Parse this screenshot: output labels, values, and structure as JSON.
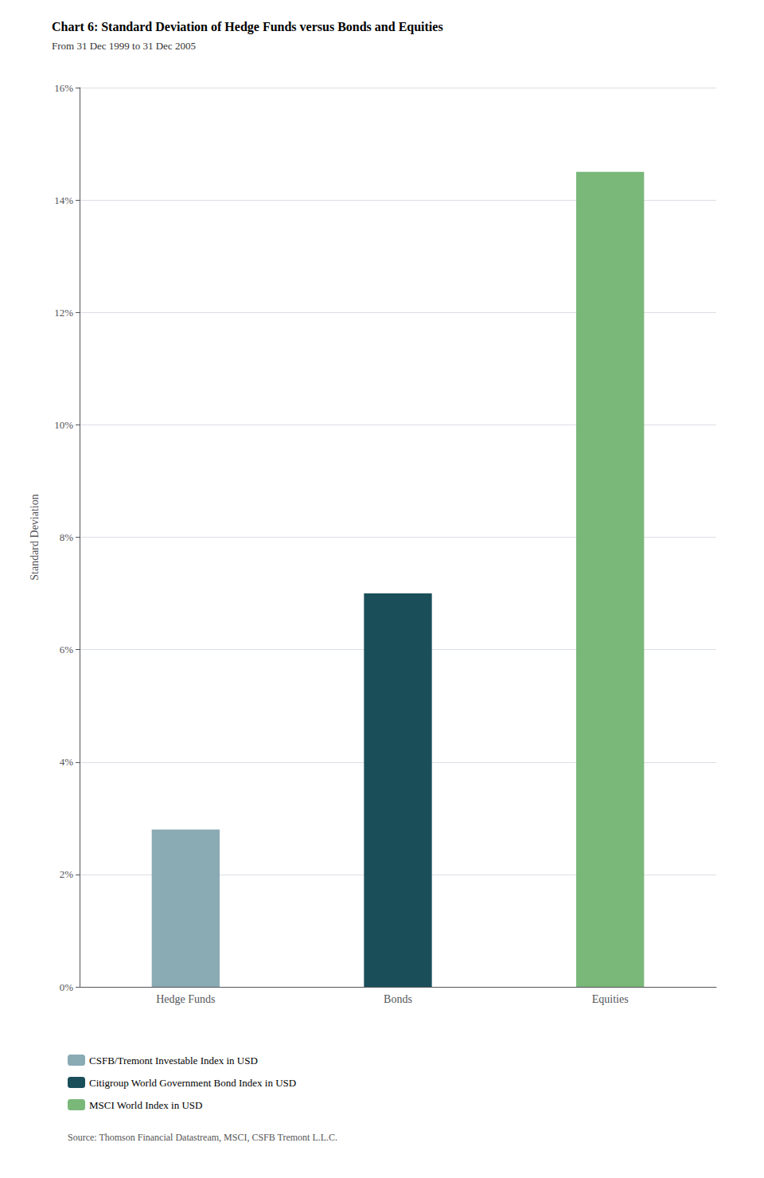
{
  "chart_data": {
    "type": "bar",
    "title": "Chart 6: Standard Deviation of Hedge Funds versus Bonds and Equities",
    "subtitle": "From 31 Dec 1999 to 31 Dec 2005",
    "ylabel": "Standard Deviation",
    "categories": [
      "Hedge Funds",
      "Bonds",
      "Equities"
    ],
    "series": [
      {
        "name": "CSFB/Tremont Investable Index in USD",
        "color": "#8aaab4",
        "values": [
          0.028,
          null,
          null
        ]
      },
      {
        "name": "Citigroup World Government Bond Index in USD",
        "color": "#1a4f5a",
        "values": [
          null,
          0.07,
          null
        ]
      },
      {
        "name": "MSCI World Index in USD",
        "color": "#7ab87a",
        "values": [
          null,
          null,
          0.145
        ]
      }
    ],
    "ylim": [
      0,
      0.16
    ],
    "yticks": [
      {
        "value": 0.0,
        "label": "0%"
      },
      {
        "value": 0.02,
        "label": "2%"
      },
      {
        "value": 0.04,
        "label": "4%"
      },
      {
        "value": 0.06,
        "label": "6%"
      },
      {
        "value": 0.08,
        "label": "8%"
      },
      {
        "value": 0.1,
        "label": "10%"
      },
      {
        "value": 0.12,
        "label": "12%"
      },
      {
        "value": 0.14,
        "label": "14%"
      },
      {
        "value": 0.16,
        "label": "16%"
      }
    ],
    "grid": true,
    "legend": "bottom",
    "annotations": [
      "Source: Thomson Financial Datastream, MSCI, CSFB Tremont L.L.C."
    ]
  }
}
